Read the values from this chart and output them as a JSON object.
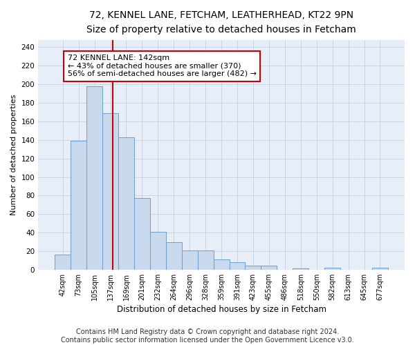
{
  "title_line1": "72, KENNEL LANE, FETCHAM, LEATHERHEAD, KT22 9PN",
  "title_line2": "Size of property relative to detached houses in Fetcham",
  "xlabel": "Distribution of detached houses by size in Fetcham",
  "ylabel": "Number of detached properties",
  "bar_labels": [
    "42sqm",
    "73sqm",
    "105sqm",
    "137sqm",
    "169sqm",
    "201sqm",
    "232sqm",
    "264sqm",
    "296sqm",
    "328sqm",
    "359sqm",
    "391sqm",
    "423sqm",
    "455sqm",
    "486sqm",
    "518sqm",
    "550sqm",
    "582sqm",
    "613sqm",
    "645sqm",
    "677sqm"
  ],
  "bar_heights": [
    16,
    139,
    198,
    169,
    143,
    77,
    41,
    30,
    21,
    21,
    11,
    8,
    4,
    4,
    0,
    1,
    0,
    2,
    0,
    0,
    2
  ],
  "bar_color": "#c8d9ee",
  "bar_edgecolor": "#6b9fcf",
  "vline_color": "#cc0000",
  "vline_x": 3.15,
  "annotation_text": "72 KENNEL LANE: 142sqm\n← 43% of detached houses are smaller (370)\n56% of semi-detached houses are larger (482) →",
  "annotation_box_facecolor": "#ffffff",
  "annotation_box_edgecolor": "#cc0000",
  "yticks": [
    0,
    20,
    40,
    60,
    80,
    100,
    120,
    140,
    160,
    180,
    200,
    220,
    240
  ],
  "ylim": [
    0,
    248
  ],
  "grid_color": "#c8d4e8",
  "background_color": "#e8eef8",
  "footer_text": "Contains HM Land Registry data © Crown copyright and database right 2024.\nContains public sector information licensed under the Open Government Licence v3.0.",
  "title_fontsize": 10,
  "subtitle_fontsize": 9,
  "annotation_fontsize": 8,
  "ylabel_fontsize": 8,
  "xlabel_fontsize": 8.5,
  "footer_fontsize": 7
}
